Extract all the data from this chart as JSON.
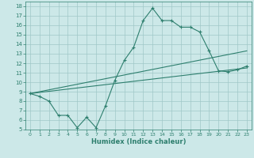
{
  "bg_color": "#cce8e8",
  "line_color": "#2e7f6e",
  "grid_color": "#a0c8c8",
  "xlabel": "Humidex (Indice chaleur)",
  "xlim": [
    -0.5,
    23.5
  ],
  "ylim": [
    5,
    18.5
  ],
  "xticks": [
    0,
    1,
    2,
    3,
    4,
    5,
    6,
    7,
    8,
    9,
    10,
    11,
    12,
    13,
    14,
    15,
    16,
    17,
    18,
    19,
    20,
    21,
    22,
    23
  ],
  "yticks": [
    5,
    6,
    7,
    8,
    9,
    10,
    11,
    12,
    13,
    14,
    15,
    16,
    17,
    18
  ],
  "line1_x": [
    0,
    1,
    2,
    3,
    4,
    5,
    6,
    7,
    8,
    9,
    10,
    11,
    12,
    13,
    14,
    15,
    16,
    17,
    18,
    19,
    20,
    21,
    22,
    23
  ],
  "line1_y": [
    8.8,
    8.5,
    8.0,
    6.5,
    6.5,
    5.2,
    6.3,
    5.2,
    7.5,
    10.2,
    12.3,
    13.7,
    16.5,
    17.8,
    16.5,
    16.5,
    15.8,
    15.8,
    15.3,
    13.3,
    11.2,
    11.1,
    11.3,
    11.7
  ],
  "line2_x": [
    0,
    23
  ],
  "line2_y": [
    8.8,
    13.3
  ],
  "line3_x": [
    0,
    23
  ],
  "line3_y": [
    8.8,
    11.5
  ]
}
